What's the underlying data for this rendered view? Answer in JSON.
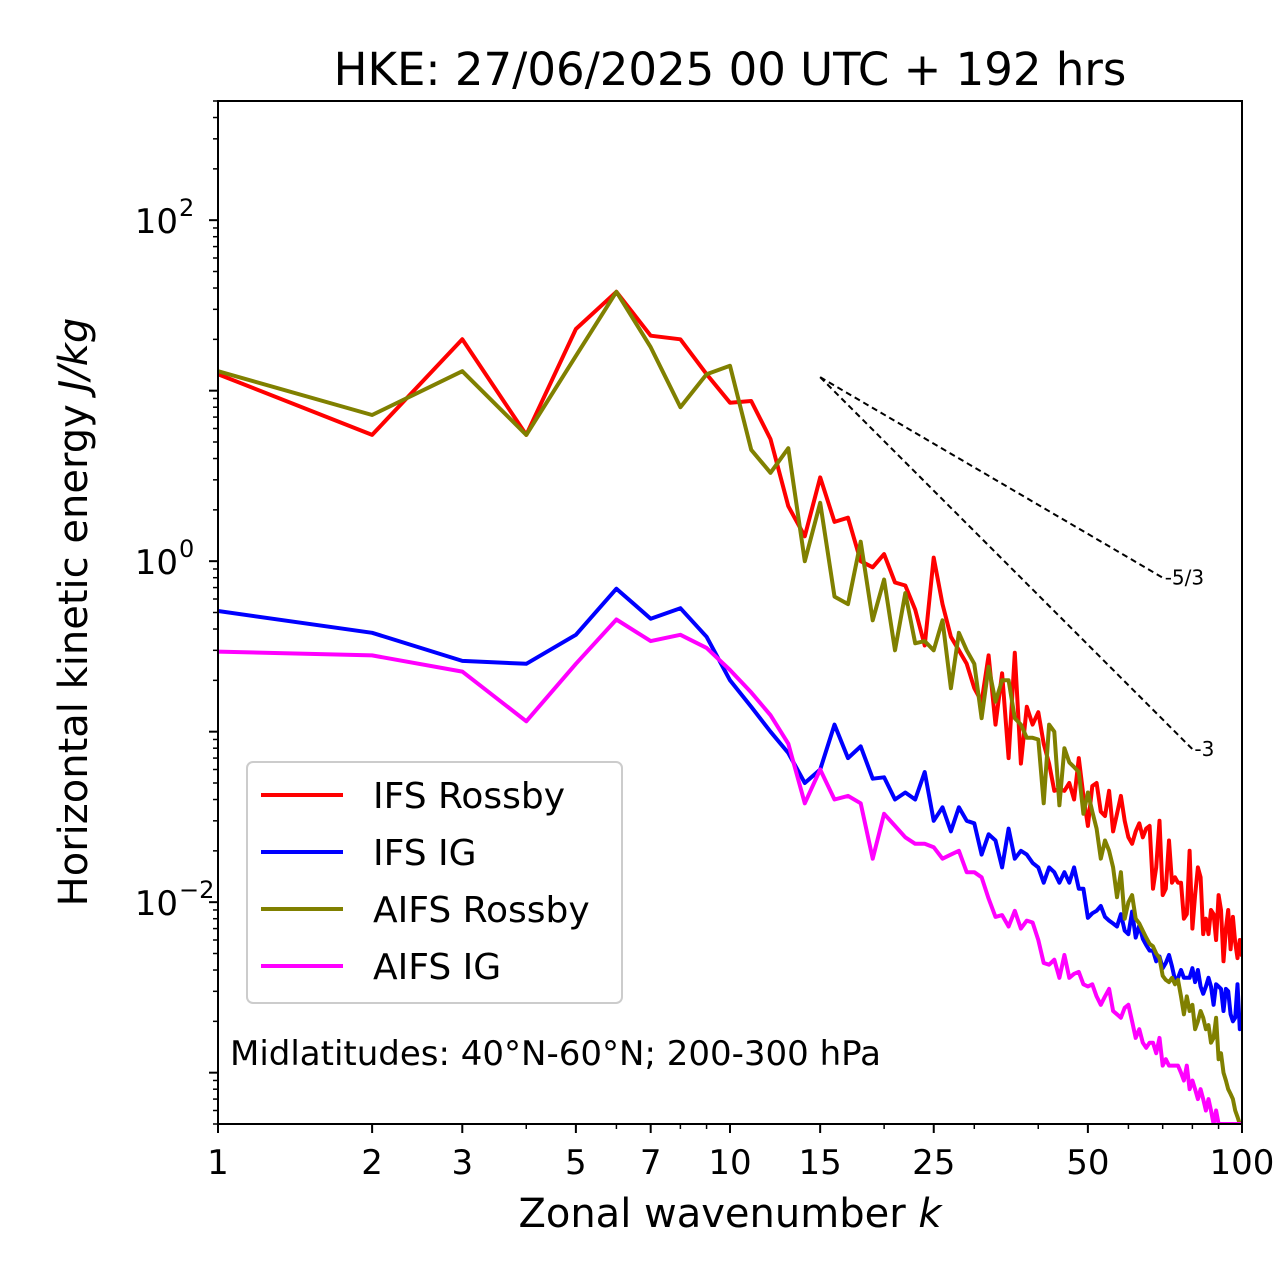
{
  "chart_data": {
    "type": "line",
    "title": "HKE: 27/06/2025 00 UTC + 192 hrs",
    "xlabel": "Zonal wavenumber",
    "xlabel_symbol": "k",
    "ylabel": "Horizontal kinetic energy",
    "ylabel_unit": "J/kg",
    "xscale": "log",
    "yscale": "log",
    "xlim": [
      1,
      100
    ],
    "ylim": [
      0.0005,
      500
    ],
    "x_ticks": [
      1,
      2,
      3,
      5,
      7,
      10,
      15,
      25,
      50,
      100
    ],
    "x_tick_labels": [
      "1",
      "2",
      "3",
      "5",
      "7",
      "10",
      "15",
      "25",
      "50",
      "100"
    ],
    "y_tick_labels": [
      {
        "value": 100,
        "base": "10",
        "exp": "2"
      },
      {
        "value": 1,
        "base": "10",
        "exp": "0"
      },
      {
        "value": 0.01,
        "base": "10",
        "exp": "−2"
      }
    ],
    "grid": false,
    "legend_position": "lower-left",
    "annotation": "Midlatitudes: 40°N-60°N; 200-300 hPa",
    "reference_lines": [
      {
        "label": "-5/3",
        "slope": -1.6667,
        "x": [
          15,
          70
        ],
        "y": [
          12,
          0.8
        ]
      },
      {
        "label": "-3",
        "slope": -3,
        "x": [
          15,
          80
        ],
        "y": [
          12,
          0.079
        ]
      }
    ],
    "series": [
      {
        "name": "IFS Rossby",
        "color": "#ff0000",
        "x": [
          1,
          2,
          3,
          4,
          5,
          6,
          7,
          8,
          9,
          10,
          11,
          12,
          13,
          14,
          15,
          16,
          17,
          18,
          19,
          20,
          21,
          22,
          23,
          24,
          25,
          26,
          27,
          28,
          29,
          30,
          31,
          32,
          33,
          34,
          35,
          36,
          37,
          38,
          39,
          40,
          41,
          42,
          43,
          44,
          45,
          46,
          47,
          48,
          49,
          50,
          51,
          52,
          53,
          54,
          55,
          56,
          57,
          58,
          59,
          60,
          61,
          62,
          63,
          64,
          65,
          66,
          67,
          68,
          69,
          70,
          71,
          72,
          73,
          74,
          75,
          76,
          77,
          78,
          79,
          80,
          81,
          82,
          83,
          84,
          85,
          86,
          87,
          88,
          89,
          90,
          91,
          92,
          93,
          94,
          95,
          96,
          97,
          98,
          99,
          100
        ],
        "y": [
          12.5,
          5.5,
          20,
          5.5,
          23,
          38,
          21,
          20,
          12.5,
          8.5,
          8.7,
          5.2,
          2.1,
          1.4,
          3.1,
          1.7,
          1.8,
          1.0,
          0.92,
          1.1,
          0.75,
          0.72,
          0.52,
          0.32,
          1.05,
          0.56,
          0.36,
          0.3,
          0.25,
          0.18,
          0.15,
          0.28,
          0.11,
          0.22,
          0.07,
          0.29,
          0.065,
          0.14,
          0.11,
          0.13,
          0.085,
          0.065,
          0.045,
          0.046,
          0.045,
          0.05,
          0.04,
          0.07,
          0.042,
          0.028,
          0.048,
          0.05,
          0.034,
          0.032,
          0.045,
          0.026,
          0.033,
          0.042,
          0.03,
          0.024,
          0.022,
          0.026,
          0.029,
          0.024,
          0.027,
          0.028,
          0.012,
          0.016,
          0.03,
          0.011,
          0.012,
          0.023,
          0.013,
          0.014,
          0.013,
          0.013,
          0.008,
          0.0085,
          0.02,
          0.007,
          0.011,
          0.016,
          0.014,
          0.0065,
          0.008,
          0.0065,
          0.009,
          0.0085,
          0.006,
          0.011,
          0.009,
          0.0045,
          0.007,
          0.009,
          0.0053,
          0.0082,
          0.0058,
          0.0047,
          0.006,
          0.0048
        ]
      },
      {
        "name": "IFS IG",
        "color": "#0000ff",
        "x": [
          1,
          2,
          3,
          4,
          5,
          6,
          7,
          8,
          9,
          10,
          11,
          12,
          13,
          14,
          15,
          16,
          17,
          18,
          19,
          20,
          21,
          22,
          23,
          24,
          25,
          26,
          27,
          28,
          29,
          30,
          31,
          32,
          33,
          34,
          35,
          36,
          37,
          38,
          39,
          40,
          41,
          42,
          43,
          44,
          45,
          46,
          47,
          48,
          49,
          50,
          51,
          52,
          53,
          54,
          55,
          56,
          57,
          58,
          59,
          60,
          61,
          62,
          63,
          64,
          65,
          66,
          67,
          68,
          69,
          70,
          71,
          72,
          73,
          74,
          75,
          76,
          77,
          78,
          79,
          80,
          81,
          82,
          83,
          84,
          85,
          86,
          87,
          88,
          89,
          90,
          91,
          92,
          93,
          94,
          95,
          96,
          97,
          98,
          99,
          100
        ],
        "y": [
          0.51,
          0.38,
          0.26,
          0.25,
          0.37,
          0.69,
          0.46,
          0.53,
          0.36,
          0.2,
          0.14,
          0.1,
          0.075,
          0.05,
          0.06,
          0.11,
          0.07,
          0.082,
          0.053,
          0.054,
          0.04,
          0.044,
          0.04,
          0.058,
          0.03,
          0.036,
          0.026,
          0.036,
          0.03,
          0.029,
          0.019,
          0.025,
          0.023,
          0.016,
          0.027,
          0.018,
          0.02,
          0.019,
          0.017,
          0.016,
          0.013,
          0.016,
          0.015,
          0.013,
          0.015,
          0.013,
          0.016,
          0.012,
          0.012,
          0.0081,
          0.0086,
          0.0089,
          0.0095,
          0.0082,
          0.0078,
          0.0075,
          0.0072,
          0.0085,
          0.0068,
          0.0065,
          0.0088,
          0.0062,
          0.0073,
          0.0061,
          0.0056,
          0.0052,
          0.0052,
          0.0045,
          0.0048,
          0.0041,
          0.0044,
          0.0049,
          0.0042,
          0.0035,
          0.0036,
          0.004,
          0.0036,
          0.0036,
          0.0036,
          0.0041,
          0.0034,
          0.004,
          0.0032,
          0.0029,
          0.0032,
          0.0036,
          0.0032,
          0.0025,
          0.0033,
          0.0032,
          0.0031,
          0.0023,
          0.0031,
          0.003,
          0.0022,
          0.002,
          0.0021,
          0.0033,
          0.0018,
          0.0019
        ]
      },
      {
        "name": "AIFS Rossby",
        "color": "#808000",
        "x": [
          1,
          2,
          3,
          4,
          5,
          6,
          7,
          8,
          9,
          10,
          11,
          12,
          13,
          14,
          15,
          16,
          17,
          18,
          19,
          20,
          21,
          22,
          23,
          24,
          25,
          26,
          27,
          28,
          29,
          30,
          31,
          32,
          33,
          34,
          35,
          36,
          37,
          38,
          39,
          40,
          41,
          42,
          43,
          44,
          45,
          46,
          47,
          48,
          49,
          50,
          51,
          52,
          53,
          54,
          55,
          56,
          57,
          58,
          59,
          60,
          61,
          62,
          63,
          64,
          65,
          66,
          67,
          68,
          69,
          70,
          71,
          72,
          73,
          74,
          75,
          76,
          77,
          78,
          79,
          80,
          81,
          82,
          83,
          84,
          85,
          86,
          87,
          88,
          89,
          90,
          91,
          92,
          93,
          94,
          95,
          96,
          97,
          98,
          99,
          100
        ],
        "y": [
          13,
          7.2,
          13,
          5.5,
          16,
          38,
          18,
          8,
          12.5,
          14,
          4.5,
          3.3,
          4.6,
          1.0,
          2.2,
          0.62,
          0.56,
          1.3,
          0.45,
          0.78,
          0.3,
          0.65,
          0.33,
          0.34,
          0.3,
          0.45,
          0.18,
          0.38,
          0.3,
          0.25,
          0.12,
          0.24,
          0.15,
          0.2,
          0.2,
          0.12,
          0.11,
          0.092,
          0.092,
          0.09,
          0.038,
          0.11,
          0.1,
          0.037,
          0.08,
          0.066,
          0.062,
          0.058,
          0.033,
          0.044,
          0.034,
          0.027,
          0.018,
          0.023,
          0.02,
          0.016,
          0.0107,
          0.015,
          0.008,
          0.01,
          0.011,
          0.008,
          0.0075,
          0.0068,
          0.0062,
          0.0057,
          0.0055,
          0.005,
          0.0047,
          0.0037,
          0.0035,
          0.0034,
          0.0036,
          0.0033,
          0.0035,
          0.0028,
          0.0022,
          0.0028,
          0.0023,
          0.0025,
          0.0018,
          0.002,
          0.0023,
          0.0021,
          0.0018,
          0.0019,
          0.0015,
          0.0016,
          0.0021,
          0.0012,
          0.0013,
          0.001,
          0.0009,
          0.0008,
          0.00075,
          0.0007,
          0.0006,
          0.00055,
          0.0005,
          0.0005
        ]
      },
      {
        "name": "AIFS IG",
        "color": "#ff00ff",
        "x": [
          1,
          2,
          3,
          4,
          5,
          6,
          7,
          8,
          9,
          10,
          11,
          12,
          13,
          14,
          15,
          16,
          17,
          18,
          19,
          20,
          21,
          22,
          23,
          24,
          25,
          26,
          27,
          28,
          29,
          30,
          31,
          32,
          33,
          34,
          35,
          36,
          37,
          38,
          39,
          40,
          41,
          42,
          43,
          44,
          45,
          46,
          47,
          48,
          49,
          50,
          51,
          52,
          53,
          54,
          55,
          56,
          57,
          58,
          59,
          60,
          61,
          62,
          63,
          64,
          65,
          66,
          67,
          68,
          69,
          70,
          71,
          72,
          73,
          74,
          75,
          76,
          77,
          78,
          79,
          80,
          81,
          82,
          83,
          84,
          85,
          86,
          87,
          88,
          89,
          90,
          91,
          92,
          93,
          94,
          95,
          96,
          97,
          98,
          99,
          100
        ],
        "y": [
          0.295,
          0.28,
          0.225,
          0.115,
          0.25,
          0.455,
          0.34,
          0.37,
          0.31,
          0.23,
          0.17,
          0.125,
          0.085,
          0.038,
          0.06,
          0.04,
          0.042,
          0.038,
          0.018,
          0.033,
          0.028,
          0.024,
          0.022,
          0.022,
          0.021,
          0.018,
          0.019,
          0.02,
          0.015,
          0.015,
          0.014,
          0.0105,
          0.0082,
          0.0084,
          0.0072,
          0.0089,
          0.007,
          0.0078,
          0.0076,
          0.006,
          0.0044,
          0.0043,
          0.0046,
          0.0036,
          0.0049,
          0.0036,
          0.0038,
          0.0039,
          0.0033,
          0.0032,
          0.0033,
          0.0028,
          0.0025,
          0.0028,
          0.0031,
          0.0023,
          0.0022,
          0.0021,
          0.0024,
          0.0025,
          0.002,
          0.0016,
          0.0018,
          0.0015,
          0.0014,
          0.0015,
          0.0015,
          0.0013,
          0.0016,
          0.0011,
          0.0012,
          0.0011,
          0.0011,
          0.0011,
          0.0011,
          0.001,
          0.0009,
          0.0011,
          0.0008,
          0.0009,
          0.0008,
          0.0007,
          0.0008,
          0.0007,
          0.0006,
          0.0007,
          0.0006,
          0.0005,
          0.0006,
          0.0005,
          0.0005,
          0.0005,
          0.0005,
          0.0005,
          0.0005,
          0.0005,
          0.0005,
          0.0005,
          0.0005,
          0.0005
        ]
      }
    ]
  }
}
